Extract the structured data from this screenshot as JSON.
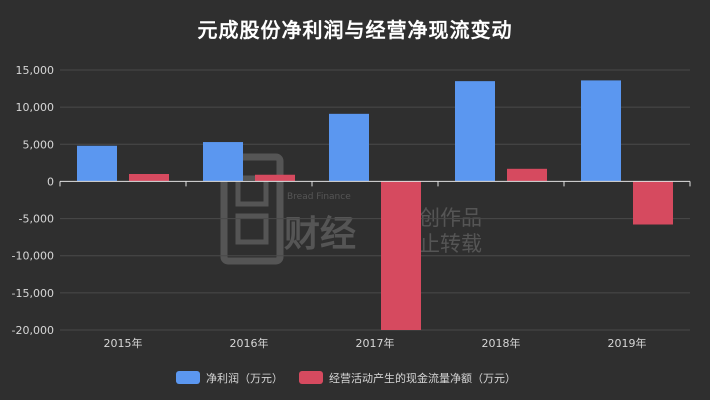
{
  "chart_data": {
    "type": "bar",
    "title": "元成股份净利润与经营净现流变动",
    "categories": [
      "2015年",
      "2016年",
      "2017年",
      "2018年",
      "2019年"
    ],
    "series": [
      {
        "name": "净利润（万元）",
        "color": "#5b97f0",
        "values": [
          4800,
          5300,
          9100,
          13500,
          13600
        ]
      },
      {
        "name": "经营活动产生的现金流量净额（万元）",
        "color": "#d64a5f",
        "values": [
          1000,
          900,
          -20000,
          1700,
          -5800
        ]
      }
    ],
    "ylim": [
      -20000,
      15000
    ],
    "yticks": [
      "-20,000",
      "-15,000",
      "-10,000",
      "-5,000",
      "0",
      "5,000",
      "10,000",
      "15,000"
    ],
    "ytick_values": [
      -20000,
      -15000,
      -10000,
      -5000,
      0,
      5000,
      10000,
      15000
    ],
    "xlabel": "",
    "ylabel": "",
    "grid": true,
    "legend_position": "bottom-center"
  },
  "watermark": {
    "brand_en": "Bread Finance",
    "brand_cn": "财经",
    "line1": "原创作品",
    "line2": "禁止转载"
  },
  "colors": {
    "background": "#2f2f2f",
    "grid": "#4a4a4a",
    "axis_text": "#d6d6d6"
  }
}
